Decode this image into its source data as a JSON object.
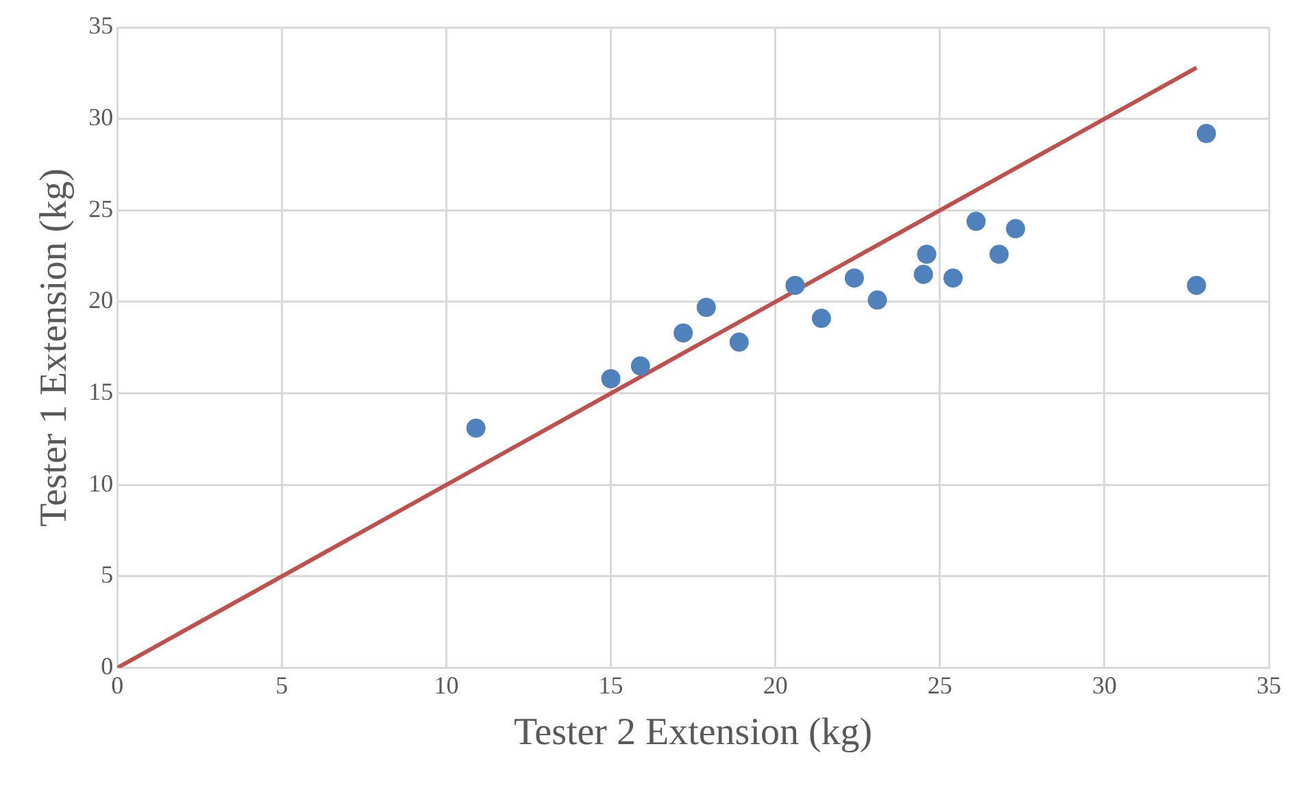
{
  "chart_data": {
    "type": "scatter",
    "xlabel": "Tester 2 Extension (kg)",
    "ylabel": "Tester 1 Extension (kg)",
    "xlim": [
      0,
      35
    ],
    "xticks": [
      0,
      5,
      10,
      15,
      20,
      25,
      30,
      35
    ],
    "ylim": [
      0,
      35
    ],
    "yticks": [
      0,
      5,
      10,
      15,
      20,
      25,
      30,
      35
    ],
    "grid": true,
    "legend": false,
    "marker": "circle",
    "series": [
      {
        "color": "#4f81bd",
        "x": [
          10.9,
          15.0,
          15.9,
          17.2,
          17.9,
          18.9,
          20.6,
          21.4,
          22.4,
          23.1,
          24.5,
          24.6,
          25.4,
          26.1,
          26.8,
          27.3,
          32.8,
          33.1
        ],
        "values": [
          13.1,
          15.8,
          16.5,
          18.3,
          19.7,
          17.8,
          20.9,
          19.1,
          21.3,
          20.1,
          21.5,
          22.6,
          21.3,
          24.4,
          22.6,
          24.0,
          20.9,
          29.2
        ]
      },
      {
        "type": "line",
        "color": "#c0504d",
        "x": [
          0,
          32.8
        ],
        "values": [
          0,
          32.8
        ],
        "marker": "none",
        "line_style": "solid"
      }
    ]
  }
}
